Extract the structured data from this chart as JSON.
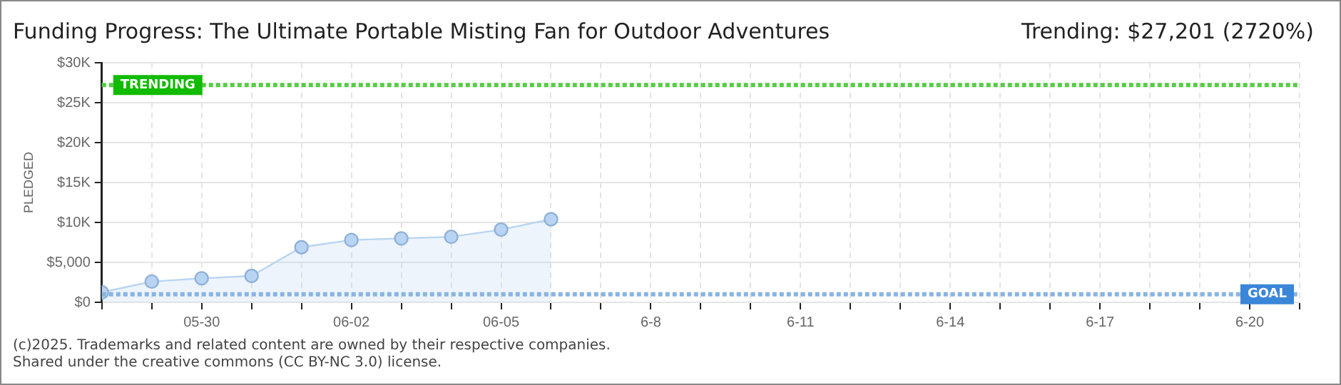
{
  "chart_data": {
    "type": "area",
    "title": "Funding Progress: The Ultimate Portable Misting Fan for Outdoor Adventures",
    "subtitle": "Trending: $27,201 (2720%)",
    "ylabel": "PLEDGED",
    "x": [
      "2025-05-28",
      "2025-05-29",
      "2025-05-30",
      "2025-05-31",
      "2025-06-01",
      "2025-06-02",
      "2025-06-03",
      "2025-06-04",
      "2025-06-05",
      "2025-06-06"
    ],
    "series": [
      {
        "color": "#b8d4f2",
        "values": [
          1250,
          2600,
          3000,
          3300,
          6900,
          7800,
          8000,
          8200,
          9100,
          10400
        ]
      }
    ],
    "xlim": [
      "2025-05-28",
      "2025-06-21"
    ],
    "xticks": [
      {
        "value": "2025-05-28",
        "label": null
      },
      {
        "value": "2025-05-29",
        "label": null
      },
      {
        "value": "2025-05-30",
        "label": "05-30"
      },
      {
        "value": "2025-05-31",
        "label": null
      },
      {
        "value": "2025-06-01",
        "label": null
      },
      {
        "value": "2025-06-02",
        "label": "06-02"
      },
      {
        "value": "2025-06-03",
        "label": null
      },
      {
        "value": "2025-06-04",
        "label": null
      },
      {
        "value": "2025-06-05",
        "label": "06-05"
      },
      {
        "value": "2025-06-06",
        "label": null
      },
      {
        "value": "2025-06-07",
        "label": null
      },
      {
        "value": "2025-06-08",
        "label": "6-8"
      },
      {
        "value": "2025-06-09",
        "label": null
      },
      {
        "value": "2025-06-10",
        "label": null
      },
      {
        "value": "2025-06-11",
        "label": "6-11"
      },
      {
        "value": "2025-06-12",
        "label": null
      },
      {
        "value": "2025-06-13",
        "label": null
      },
      {
        "value": "2025-06-14",
        "label": "6-14"
      },
      {
        "value": "2025-06-15",
        "label": null
      },
      {
        "value": "2025-06-16",
        "label": null
      },
      {
        "value": "2025-06-17",
        "label": "6-17"
      },
      {
        "value": "2025-06-18",
        "label": null
      },
      {
        "value": "2025-06-19",
        "label": null
      },
      {
        "value": "2025-06-20",
        "label": "6-20"
      },
      {
        "value": "2025-06-21",
        "label": null
      }
    ],
    "ylim": [
      0,
      30000
    ],
    "yticks": [
      {
        "value": 0,
        "label": "$0"
      },
      {
        "value": 5000,
        "label": "$5,000"
      },
      {
        "value": 10000,
        "label": "$10K"
      },
      {
        "value": 15000,
        "label": "$15K"
      },
      {
        "value": 20000,
        "label": "$20K"
      },
      {
        "value": 25000,
        "label": "$25K"
      },
      {
        "value": 30000,
        "label": "$30K"
      }
    ],
    "ref_lines": [
      {
        "axis": "y",
        "value": 27201,
        "label": "TRENDING",
        "color": "#55cc44",
        "line_style": "dotted"
      },
      {
        "axis": "y",
        "value": 1000,
        "label": "GOAL",
        "color": "#8ab4e0",
        "line_style": "dotted"
      }
    ],
    "grid": true,
    "marker": "circle",
    "annotations": [
      "(c)2025. Trademarks and related content are owned by their respective companies.",
      "Shared under the creative commons (CC BY-NC 3.0) license."
    ]
  }
}
